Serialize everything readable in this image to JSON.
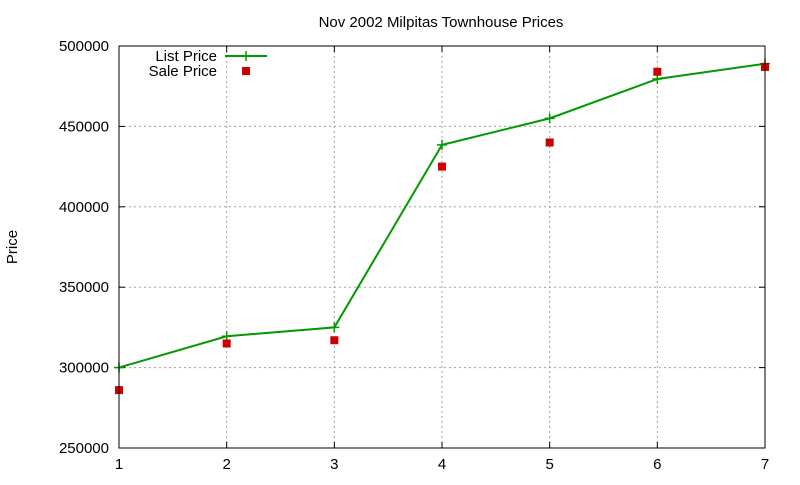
{
  "chart_data": {
    "type": "line",
    "title": "Nov 2002 Milpitas Townhouse Prices",
    "xlabel": "",
    "ylabel": "Price",
    "xlim": [
      1,
      7
    ],
    "ylim": [
      250000,
      500000
    ],
    "xticks": [
      "1",
      "2",
      "3",
      "4",
      "5",
      "6",
      "7"
    ],
    "yticks": [
      "250000",
      "300000",
      "350000",
      "400000",
      "450000",
      "500000"
    ],
    "grid": true,
    "legend_position": "top-left",
    "series": [
      {
        "name": "List Price",
        "style": "line-with-plus-markers",
        "color": "#009900",
        "x": [
          1,
          2,
          3,
          4,
          5,
          6,
          7
        ],
        "y": [
          300000,
          319500,
          325000,
          438500,
          455000,
          479500,
          489000
        ]
      },
      {
        "name": "Sale Price",
        "style": "square-markers",
        "color": "#cc0000",
        "x": [
          1,
          2,
          3,
          4,
          5,
          6,
          7
        ],
        "y": [
          286000,
          315000,
          317000,
          425000,
          440000,
          484000,
          487000
        ]
      }
    ]
  }
}
